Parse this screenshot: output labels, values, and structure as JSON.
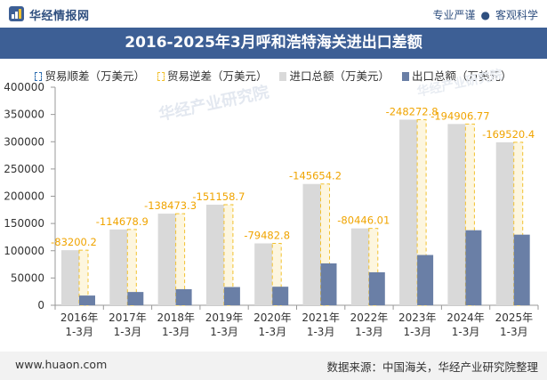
{
  "header": {
    "site_name": "华经情报网",
    "slogan_left": "专业严谨",
    "slogan_right": "客观科学"
  },
  "footer": {
    "url": "www.huaon.com",
    "source": "数据来源：中国海关，华经产业研究院整理"
  },
  "watermark": "华经产业研究院",
  "colors": {
    "title_bg": "#3d5f95",
    "import": "#d9d9d9",
    "export": "#6a7fa6",
    "deficit_border": "#f2c12e",
    "surplus_border": "#2b6cb0",
    "label": "#f0a400"
  },
  "chart_data": {
    "type": "bar",
    "title": "2016-2025年3月呼和浩特海关进出口差额",
    "legend_position": "top",
    "categories": [
      "2016年\n1-3月",
      "2017年\n1-3月",
      "2018年\n1-3月",
      "2019年\n1-3月",
      "2020年\n1-3月",
      "2021年\n1-3月",
      "2022年\n1-3月",
      "2023年\n1-3月",
      "2024年\n1-3月",
      "2025年\n1-3月"
    ],
    "series": [
      {
        "name": "贸易顺差（万美元）",
        "values": [
          null,
          null,
          null,
          null,
          null,
          null,
          null,
          null,
          null,
          null
        ]
      },
      {
        "name": "贸易逆差（万美元）",
        "values": [
          -83200.2,
          -114678.9,
          -138473.3,
          -151158.7,
          -79482.8,
          -145654.2,
          -80446.01,
          -248272.8,
          -194906.77,
          -169520.4
        ]
      },
      {
        "name": "进口总额（万美元）",
        "values": [
          101000,
          139000,
          168000,
          184500,
          113500,
          222500,
          141000,
          340500,
          332500,
          299000
        ]
      },
      {
        "name": "出口总额（万美元）",
        "values": [
          17800,
          24300,
          29500,
          33400,
          34000,
          76800,
          60500,
          92200,
          137600,
          129500
        ]
      }
    ],
    "data_labels": [
      "-83200.2",
      "-114678.9",
      "-138473.3",
      "-151158.7",
      "-79482.8",
      "-145654.2",
      "-80446.01",
      "-248272.8",
      "-194906.77",
      "-169520.4"
    ],
    "yticks": [
      "0",
      "50000",
      "100000",
      "150000",
      "200000",
      "250000",
      "300000",
      "350000",
      "400000"
    ],
    "ylim": [
      0,
      400000
    ],
    "xlabel": "",
    "ylabel": ""
  }
}
